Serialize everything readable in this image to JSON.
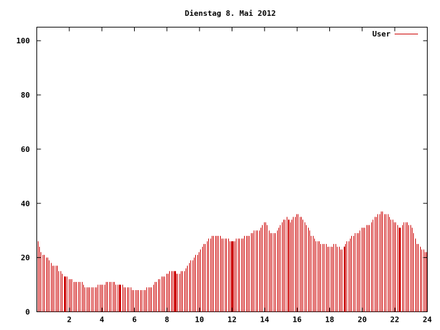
{
  "chart_data": {
    "type": "bar",
    "title": "Dienstag 8. Mai 2012",
    "xlabel": "",
    "ylabel": "",
    "xlim": [
      0,
      24
    ],
    "ylim": [
      0,
      105
    ],
    "x_ticks": [
      "2",
      "4",
      "6",
      "8",
      "10",
      "12",
      "14",
      "16",
      "18",
      "20",
      "22",
      "24"
    ],
    "x_tick_values": [
      2,
      4,
      6,
      8,
      10,
      12,
      14,
      16,
      18,
      20,
      22,
      24
    ],
    "y_ticks": [
      "0",
      "20",
      "40",
      "60",
      "80",
      "100"
    ],
    "y_tick_values": [
      0,
      20,
      40,
      60,
      80,
      100
    ],
    "grid": false,
    "legend_position": "top-right",
    "series": [
      {
        "name": "User",
        "color": "#cc0000",
        "key_points": [
          [
            0.0,
            27
          ],
          [
            0.3,
            21
          ],
          [
            0.6,
            20
          ],
          [
            0.8,
            18
          ],
          [
            1.0,
            17
          ],
          [
            1.2,
            17
          ],
          [
            1.4,
            15
          ],
          [
            1.7,
            13
          ],
          [
            2.0,
            12
          ],
          [
            2.3,
            11
          ],
          [
            2.7,
            11
          ],
          [
            3.0,
            9
          ],
          [
            3.5,
            9
          ],
          [
            4.0,
            10
          ],
          [
            4.5,
            11
          ],
          [
            5.0,
            10
          ],
          [
            5.5,
            9
          ],
          [
            6.0,
            8
          ],
          [
            6.5,
            8
          ],
          [
            7.0,
            9
          ],
          [
            7.5,
            12
          ],
          [
            8.0,
            14
          ],
          [
            8.3,
            15
          ],
          [
            8.7,
            14
          ],
          [
            9.0,
            15
          ],
          [
            9.5,
            19
          ],
          [
            10.0,
            22
          ],
          [
            10.5,
            27
          ],
          [
            11.0,
            28
          ],
          [
            11.5,
            27
          ],
          [
            12.0,
            26
          ],
          [
            12.5,
            27
          ],
          [
            13.0,
            28
          ],
          [
            13.4,
            30
          ],
          [
            13.7,
            30
          ],
          [
            14.0,
            34
          ],
          [
            14.3,
            29
          ],
          [
            14.6,
            29
          ],
          [
            15.0,
            32
          ],
          [
            15.3,
            35
          ],
          [
            15.6,
            33
          ],
          [
            15.9,
            36
          ],
          [
            16.3,
            35
          ],
          [
            16.6,
            31
          ],
          [
            17.0,
            27
          ],
          [
            17.5,
            25
          ],
          [
            18.0,
            24
          ],
          [
            18.3,
            25
          ],
          [
            18.7,
            23
          ],
          [
            19.0,
            25
          ],
          [
            19.3,
            28
          ],
          [
            19.7,
            29
          ],
          [
            20.0,
            31
          ],
          [
            20.4,
            32
          ],
          [
            20.8,
            35
          ],
          [
            21.2,
            37
          ],
          [
            21.5,
            36
          ],
          [
            21.8,
            34
          ],
          [
            22.0,
            33
          ],
          [
            22.3,
            31
          ],
          [
            22.6,
            33
          ],
          [
            23.0,
            32
          ],
          [
            23.3,
            26
          ],
          [
            23.6,
            23
          ],
          [
            24.0,
            22
          ]
        ],
        "highlight_bars": [
          1.7,
          5.1,
          8.5,
          12.0,
          15.5,
          18.9,
          22.3
        ]
      }
    ]
  }
}
